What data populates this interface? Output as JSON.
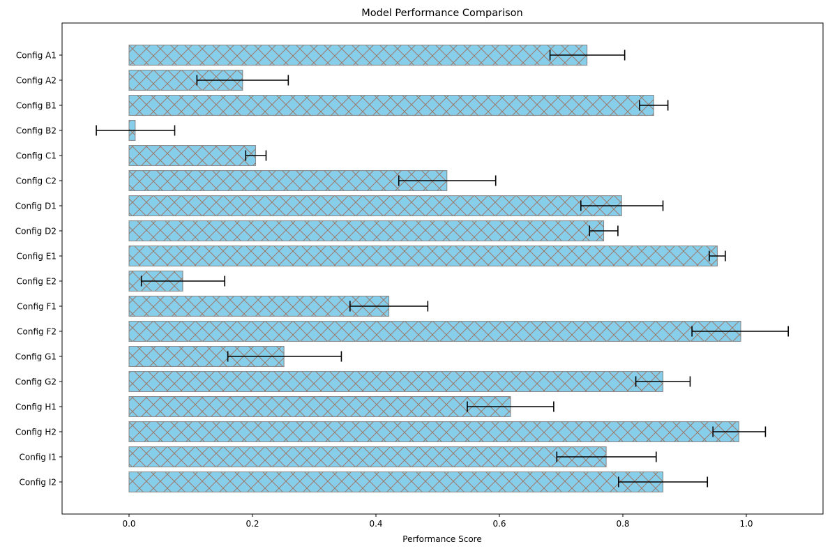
{
  "chart_data": {
    "type": "bar",
    "orientation": "horizontal",
    "title": "Model Performance Comparison",
    "xlabel": "Performance Score",
    "ylabel": "",
    "xlim": [
      -0.11,
      1.17
    ],
    "xticks": [
      0.0,
      0.2,
      0.4,
      0.6,
      0.8,
      1.0
    ],
    "xtick_labels": [
      "0.0",
      "0.2",
      "0.4",
      "0.6",
      "0.8",
      "1.0"
    ],
    "grid": false,
    "legend": "none",
    "categories": [
      "Config A1",
      "Config A2",
      "Config B1",
      "Config B2",
      "Config C1",
      "Config C2",
      "Config D1",
      "Config D2",
      "Config E1",
      "Config E2",
      "Config F1",
      "Config F2",
      "Config G1",
      "Config G2",
      "Config H1",
      "Config H2",
      "Config I1",
      "Config I2"
    ],
    "values": [
      0.742,
      0.184,
      0.85,
      0.01,
      0.205,
      0.515,
      0.798,
      0.769,
      0.953,
      0.087,
      0.421,
      0.991,
      0.251,
      0.865,
      0.618,
      0.988,
      0.773,
      0.865
    ],
    "error_low": [
      0.682,
      0.11,
      0.827,
      -0.053,
      0.189,
      0.437,
      0.732,
      0.746,
      0.94,
      0.02,
      0.358,
      0.912,
      0.16,
      0.821,
      0.548,
      0.946,
      0.693,
      0.793
    ],
    "error_high": [
      0.803,
      0.258,
      0.873,
      0.074,
      0.222,
      0.594,
      0.865,
      0.792,
      0.966,
      0.155,
      0.484,
      1.068,
      0.344,
      0.909,
      0.688,
      1.031,
      0.854,
      0.937
    ],
    "colors": {
      "bar_fill": "#87CEEB",
      "bar_edge": "#808080",
      "hatch": "#9c7a6a",
      "errorbar": "#000000"
    },
    "hatch": "x"
  }
}
